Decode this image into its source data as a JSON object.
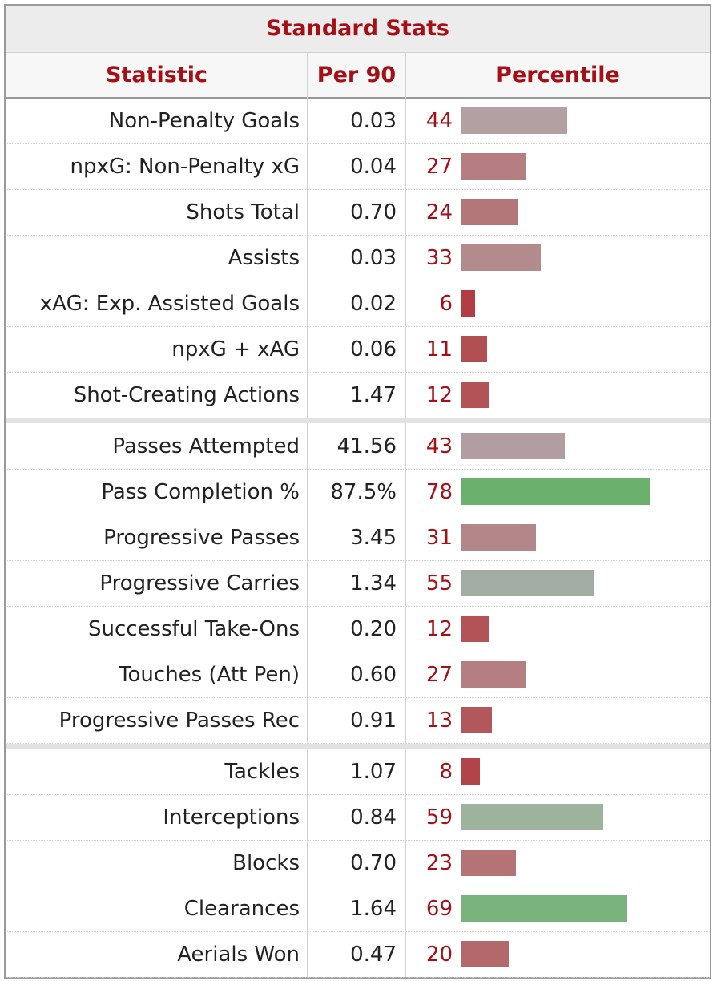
{
  "title": "Standard Stats",
  "headers": {
    "statistic": "Statistic",
    "per90": "Per 90",
    "percentile": "Percentile"
  },
  "colors": {
    "header_text": "#a50f15",
    "percentile_text": "#a50f15"
  },
  "groups": [
    [
      {
        "stat": "Non-Penalty Goals",
        "per90": "0.03",
        "pct": 44,
        "color": "#b2a0a2"
      },
      {
        "stat": "npxG: Non-Penalty xG",
        "per90": "0.04",
        "pct": 27,
        "color": "#b57f82"
      },
      {
        "stat": "Shots Total",
        "per90": "0.70",
        "pct": 24,
        "color": "#b47779"
      },
      {
        "stat": "Assists",
        "per90": "0.03",
        "pct": 33,
        "color": "#b38b8d"
      },
      {
        "stat": "xAG: Exp. Assisted Goals",
        "per90": "0.02",
        "pct": 6,
        "color": "#b13d42"
      },
      {
        "stat": "npxG + xAG",
        "per90": "0.06",
        "pct": 11,
        "color": "#b24f53"
      },
      {
        "stat": "Shot-Creating Actions",
        "per90": "1.47",
        "pct": 12,
        "color": "#b25357"
      }
    ],
    [
      {
        "stat": "Passes Attempted",
        "per90": "41.56",
        "pct": 43,
        "color": "#b29ea0"
      },
      {
        "stat": "Pass Completion %",
        "per90": "87.5%",
        "pct": 78,
        "color": "#6cb06e"
      },
      {
        "stat": "Progressive Passes",
        "per90": "3.45",
        "pct": 31,
        "color": "#b3878a"
      },
      {
        "stat": "Progressive Carries",
        "per90": "1.34",
        "pct": 55,
        "color": "#a3aca2"
      },
      {
        "stat": "Successful Take-Ons",
        "per90": "0.20",
        "pct": 12,
        "color": "#b25357"
      },
      {
        "stat": "Touches (Att Pen)",
        "per90": "0.60",
        "pct": 27,
        "color": "#b57f82"
      },
      {
        "stat": "Progressive Passes Rec",
        "per90": "0.91",
        "pct": 13,
        "color": "#b2575b"
      }
    ],
    [
      {
        "stat": "Tackles",
        "per90": "1.07",
        "pct": 8,
        "color": "#b14448"
      },
      {
        "stat": "Interceptions",
        "per90": "0.84",
        "pct": 59,
        "color": "#9db39c"
      },
      {
        "stat": "Blocks",
        "per90": "0.70",
        "pct": 23,
        "color": "#b47476"
      },
      {
        "stat": "Clearances",
        "per90": "1.64",
        "pct": 69,
        "color": "#7bb37c"
      },
      {
        "stat": "Aerials Won",
        "per90": "0.47",
        "pct": 20,
        "color": "#b3696c"
      }
    ]
  ],
  "chart_data": {
    "type": "bar",
    "title": "Standard Stats",
    "categories": [
      "Non-Penalty Goals",
      "npxG: Non-Penalty xG",
      "Shots Total",
      "Assists",
      "xAG: Exp. Assisted Goals",
      "npxG + xAG",
      "Shot-Creating Actions",
      "Passes Attempted",
      "Pass Completion %",
      "Progressive Passes",
      "Progressive Carries",
      "Successful Take-Ons",
      "Touches (Att Pen)",
      "Progressive Passes Rec",
      "Tackles",
      "Interceptions",
      "Blocks",
      "Clearances",
      "Aerials Won"
    ],
    "series": [
      {
        "name": "Per 90",
        "values": [
          0.03,
          0.04,
          0.7,
          0.03,
          0.02,
          0.06,
          1.47,
          41.56,
          87.5,
          3.45,
          1.34,
          0.2,
          0.6,
          0.91,
          1.07,
          0.84,
          0.7,
          1.64,
          0.47
        ]
      },
      {
        "name": "Percentile",
        "values": [
          44,
          27,
          24,
          33,
          6,
          11,
          12,
          43,
          78,
          31,
          55,
          12,
          27,
          13,
          8,
          59,
          23,
          69,
          20
        ]
      }
    ],
    "xlim": [
      0,
      100
    ],
    "grid": false,
    "legend": "none"
  }
}
